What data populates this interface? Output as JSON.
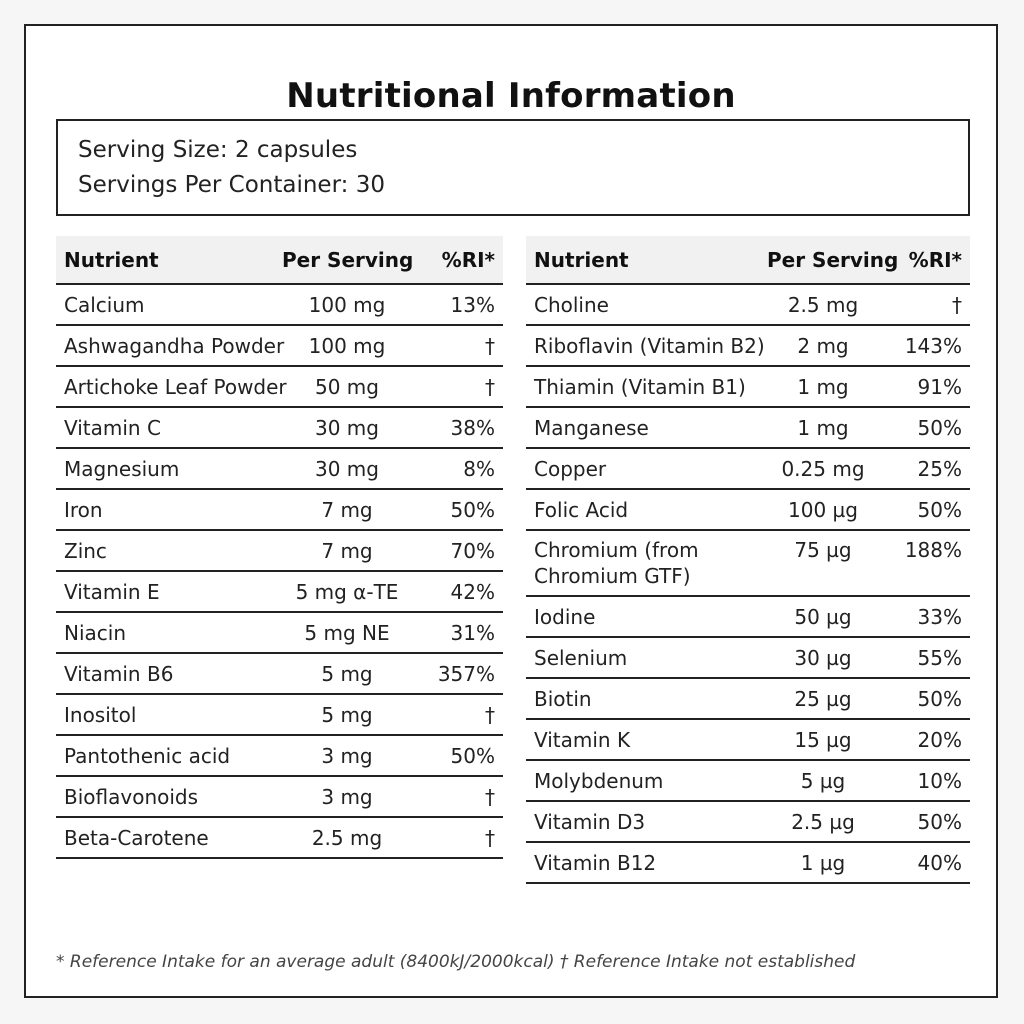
{
  "title": "Nutritional Information",
  "serving": {
    "size": "Serving Size: 2 capsules",
    "per_container": "Servings Per Container: 30"
  },
  "headers": {
    "nutrient": "Nutrient",
    "per_serving": "Per Serving",
    "ri": "%RI*"
  },
  "left_table": [
    {
      "nutrient": "Calcium",
      "amount": "100 mg",
      "ri": "13%"
    },
    {
      "nutrient": "Ashwagandha Powder",
      "amount": "100 mg",
      "ri": "†"
    },
    {
      "nutrient": "Artichoke Leaf Powder",
      "amount": "50 mg",
      "ri": "†"
    },
    {
      "nutrient": "Vitamin C",
      "amount": "30 mg",
      "ri": "38%"
    },
    {
      "nutrient": "Magnesium",
      "amount": "30 mg",
      "ri": "8%"
    },
    {
      "nutrient": "Iron",
      "amount": "7 mg",
      "ri": "50%"
    },
    {
      "nutrient": "Zinc",
      "amount": "7 mg",
      "ri": "70%"
    },
    {
      "nutrient": "Vitamin E",
      "amount": "5 mg α-TE",
      "ri": "42%"
    },
    {
      "nutrient": "Niacin",
      "amount": "5 mg NE",
      "ri": "31%"
    },
    {
      "nutrient": "Vitamin B6",
      "amount": "5 mg",
      "ri": "357%"
    },
    {
      "nutrient": "Inositol",
      "amount": "5 mg",
      "ri": "†"
    },
    {
      "nutrient": "Pantothenic acid",
      "amount": "3 mg",
      "ri": "50%"
    },
    {
      "nutrient": "Bioflavonoids",
      "amount": "3 mg",
      "ri": "†"
    },
    {
      "nutrient": "Beta-Carotene",
      "amount": "2.5 mg",
      "ri": "†"
    }
  ],
  "right_table": [
    {
      "nutrient": "Choline",
      "amount": "2.5 mg",
      "ri": "†"
    },
    {
      "nutrient": "Riboflavin (Vitamin B2)",
      "amount": "2 mg",
      "ri": "143%"
    },
    {
      "nutrient": "Thiamin (Vitamin B1)",
      "amount": "1 mg",
      "ri": "91%"
    },
    {
      "nutrient": "Manganese",
      "amount": "1 mg",
      "ri": "50%"
    },
    {
      "nutrient": "Copper",
      "amount": "0.25 mg",
      "ri": "25%"
    },
    {
      "nutrient": "Folic Acid",
      "amount": "100 µg",
      "ri": "50%"
    },
    {
      "nutrient": "Chromium (from Chromium GTF)",
      "amount": "75 µg",
      "ri": "188%"
    },
    {
      "nutrient": "Iodine",
      "amount": "50 µg",
      "ri": "33%"
    },
    {
      "nutrient": "Selenium",
      "amount": "30 µg",
      "ri": "55%"
    },
    {
      "nutrient": "Biotin",
      "amount": "25 µg",
      "ri": "50%"
    },
    {
      "nutrient": "Vitamin K",
      "amount": "15 µg",
      "ri": "20%"
    },
    {
      "nutrient": "Molybdenum",
      "amount": "5 µg",
      "ri": "10%"
    },
    {
      "nutrient": "Vitamin D3",
      "amount": "2.5 µg",
      "ri": "50%"
    },
    {
      "nutrient": "Vitamin B12",
      "amount": "1 µg",
      "ri": "40%"
    }
  ],
  "footnote": "* Reference Intake for an average adult (8400kJ/2000kcal) † Reference Intake not established"
}
